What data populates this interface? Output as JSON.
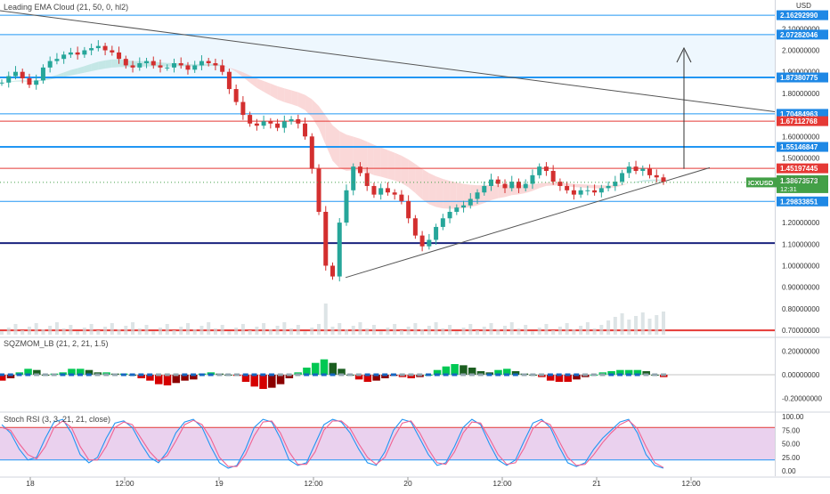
{
  "colors": {
    "up": "#26a69a",
    "down": "#d32f2f",
    "blue_line": "#2196f3",
    "dark_blue": "#1a237e",
    "red_line": "#e53935",
    "cloud_bull": "#b2dfdb",
    "cloud_bear": "#f8c8c8",
    "symbol_tag": "#43a047",
    "price_tag": "#1e88e5",
    "red_tag": "#e53935",
    "stoch_k": "#2196f3",
    "stoch_d": "#f06292",
    "stoch_band": "#e1bee7"
  },
  "main": {
    "indicator_label": "Leading EMA Cloud (21, 50, 0, hl2)",
    "currency": "USD",
    "axis_ticks": [
      "2.10000000",
      "2.00000000",
      "1.90000000",
      "1.80000000",
      "1.60000000",
      "1.50000000",
      "1.20000000",
      "1.10000000",
      "1.00000000",
      "0.90000000",
      "0.80000000",
      "0.70000000"
    ],
    "hlines": [
      {
        "value": 2.1629,
        "label": "2.16292990",
        "style": "blue_line",
        "show_tag": true
      },
      {
        "value": 2.07282046,
        "label": "2.07282046",
        "style": "blue_line",
        "show_tag": true
      },
      {
        "value": 1.87380775,
        "label": "1.87380775",
        "style": "blue_line_thick",
        "show_tag": true
      },
      {
        "value": 1.70484963,
        "label": "1.70484963",
        "style": "blue_line",
        "show_tag": true
      },
      {
        "value": 1.67112768,
        "label": "1.67112768",
        "style": "red_line",
        "show_tag": true
      },
      {
        "value": 1.55146847,
        "label": "1.55146847",
        "style": "blue_line_thick",
        "show_tag": true
      },
      {
        "value": 1.45197445,
        "label": "1.45197445",
        "style": "red_line",
        "show_tag": true
      },
      {
        "value": 1.29833851,
        "label": "1.29833851",
        "style": "blue_line",
        "show_tag": true
      },
      {
        "value": 1.105,
        "label": "",
        "style": "dark_blue",
        "show_tag": false
      },
      {
        "value": 0.7,
        "label": "",
        "style": "red_bottom",
        "show_tag": false
      }
    ],
    "symbol_tag": {
      "symbol": "ICXUSD",
      "price": "1.38673573",
      "countdown": "12:31"
    },
    "hidden_tag": "1.40000000"
  },
  "sqzmom": {
    "label": "SQZMOM_LB (21, 2, 21, 1.5)",
    "axis_ticks": [
      "0.20000000",
      "0.00000000",
      "-0.20000000"
    ]
  },
  "stoch": {
    "label": "Stoch RSI (3, 3, 21, 21, close)",
    "axis_ticks": [
      "100.00",
      "75.00",
      "50.00",
      "25.00",
      "0.00"
    ]
  },
  "time_axis": [
    "18",
    "12:00",
    "19",
    "12:00",
    "20",
    "12:00",
    "21",
    "12:00"
  ],
  "chart_data": [
    {
      "type": "candlestick",
      "title": "Leading EMA Cloud (21, 50, 0, hl2)",
      "ylim": [
        0.7,
        2.17
      ],
      "close": [
        1.85,
        1.88,
        1.9,
        1.87,
        1.84,
        1.86,
        1.92,
        1.95,
        1.96,
        1.98,
        1.99,
        1.98,
        2.0,
        2.01,
        2.02,
        2.0,
        1.99,
        1.96,
        1.93,
        1.92,
        1.94,
        1.95,
        1.93,
        1.92,
        1.92,
        1.94,
        1.93,
        1.91,
        1.93,
        1.95,
        1.94,
        1.93,
        1.9,
        1.82,
        1.76,
        1.7,
        1.66,
        1.65,
        1.67,
        1.66,
        1.64,
        1.67,
        1.68,
        1.66,
        1.6,
        1.45,
        1.25,
        1.0,
        0.95,
        1.2,
        1.35,
        1.46,
        1.43,
        1.37,
        1.33,
        1.36,
        1.34,
        1.33,
        1.3,
        1.22,
        1.14,
        1.09,
        1.12,
        1.18,
        1.22,
        1.25,
        1.27,
        1.28,
        1.31,
        1.34,
        1.37,
        1.4,
        1.38,
        1.36,
        1.39,
        1.36,
        1.38,
        1.42,
        1.46,
        1.44,
        1.39,
        1.37,
        1.35,
        1.33,
        1.35,
        1.35,
        1.34,
        1.36,
        1.37,
        1.39,
        1.43,
        1.46,
        1.44,
        1.45,
        1.42,
        1.41,
        1.39
      ],
      "xlabels": [
        "18",
        "12:00",
        "19",
        "12:00",
        "20",
        "12:00",
        "21",
        "12:00"
      ]
    },
    {
      "type": "bar",
      "title": "SQZMOM_LB (21, 2, 21, 1.5)",
      "ylim": [
        -0.3,
        0.3
      ],
      "values": [
        -0.05,
        -0.03,
        0.02,
        0.05,
        0.04,
        0.0,
        0.01,
        0.02,
        0.05,
        0.05,
        0.04,
        0.02,
        0.02,
        0.01,
        0.01,
        0.0,
        -0.03,
        -0.05,
        -0.08,
        -0.09,
        -0.07,
        -0.05,
        -0.04,
        0.01,
        0.02,
        0.01,
        0.0,
        -0.01,
        -0.06,
        -0.1,
        -0.12,
        -0.11,
        -0.08,
        -0.03,
        0.02,
        0.06,
        0.1,
        0.13,
        0.1,
        0.05,
        0.0,
        -0.04,
        -0.06,
        -0.05,
        -0.03,
        -0.01,
        -0.02,
        -0.03,
        -0.02,
        0.0,
        0.04,
        0.07,
        0.09,
        0.08,
        0.06,
        0.03,
        0.02,
        0.04,
        0.05,
        0.03,
        0.01,
        0.0,
        -0.02,
        -0.05,
        -0.06,
        -0.06,
        -0.04,
        -0.02,
        0.0,
        0.02,
        0.03,
        0.04,
        0.04,
        0.04,
        0.03,
        0.0,
        -0.02
      ]
    },
    {
      "type": "line",
      "title": "Stoch RSI (3, 3, 21, 21, close)",
      "ylim": [
        0,
        100
      ],
      "series": [
        {
          "values": [
            85,
            70,
            40,
            20,
            25,
            60,
            90,
            95,
            70,
            30,
            15,
            25,
            60,
            88,
            92,
            80,
            50,
            25,
            15,
            35,
            70,
            90,
            95,
            80,
            45,
            15,
            5,
            10,
            40,
            80,
            95,
            90,
            60,
            20,
            10,
            15,
            50,
            85,
            95,
            90,
            70,
            40,
            15,
            10,
            35,
            75,
            95,
            90,
            60,
            30,
            10,
            15,
            45,
            80,
            95,
            85,
            50,
            20,
            10,
            20,
            55,
            88,
            95,
            80,
            45,
            15,
            8,
            15,
            40,
            60,
            75,
            90,
            95,
            70,
            30,
            10,
            5
          ]
        },
        {
          "values": [
            80,
            75,
            50,
            30,
            22,
            45,
            80,
            92,
            80,
            45,
            20,
            20,
            45,
            80,
            90,
            85,
            60,
            35,
            18,
            28,
            55,
            85,
            93,
            85,
            60,
            25,
            8,
            8,
            30,
            65,
            90,
            92,
            70,
            35,
            12,
            12,
            35,
            75,
            92,
            92,
            78,
            50,
            25,
            12,
            25,
            60,
            88,
            92,
            70,
            40,
            15,
            12,
            35,
            70,
            90,
            88,
            60,
            30,
            12,
            15,
            42,
            78,
            92,
            85,
            55,
            25,
            10,
            12,
            30,
            52,
            70,
            85,
            93,
            78,
            45,
            15,
            6
          ]
        }
      ]
    }
  ]
}
